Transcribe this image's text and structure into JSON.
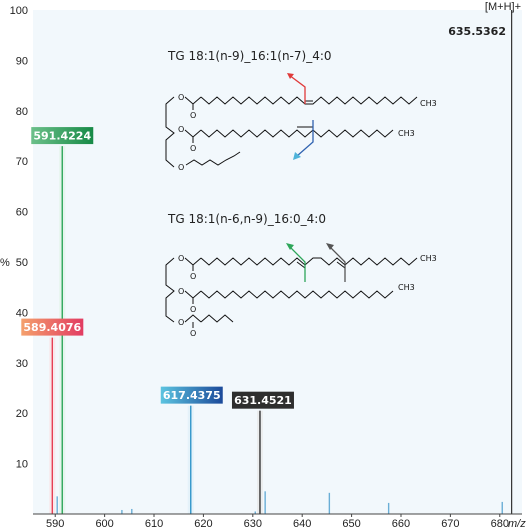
{
  "chart_data": {
    "type": "bar",
    "subtype": "mass-spectrum",
    "xlabel": "m/z",
    "ylabel": "%",
    "xlim": [
      585.5,
      684.5
    ],
    "ylim": [
      0,
      100
    ],
    "xticks": [
      590,
      600,
      610,
      620,
      630,
      640,
      650,
      660,
      670,
      680
    ],
    "yticks": [
      10,
      20,
      30,
      40,
      50,
      60,
      70,
      80,
      90,
      100
    ],
    "grid": false,
    "background": "#f2f8fc",
    "peaks": [
      {
        "mz": 589.4076,
        "intensity": 35,
        "label": "589.4076",
        "color": "#e64055",
        "label_gradient": [
          "#f4a06c",
          "#e23c62"
        ],
        "label_tint": "#fbe3e5"
      },
      {
        "mz": 590.4,
        "intensity": 3.5,
        "color": "#6aaed6"
      },
      {
        "mz": 591.4224,
        "intensity": 73,
        "label": "591.4224",
        "color": "#2ea65a",
        "label_gradient": [
          "#6cc08a",
          "#178a46"
        ],
        "label_tint": "#e1f3e7"
      },
      {
        "mz": 603.5,
        "intensity": 0.8,
        "color": "#6aaed6"
      },
      {
        "mz": 605.5,
        "intensity": 1.0,
        "color": "#6aaed6"
      },
      {
        "mz": 617.4375,
        "intensity": 21.5,
        "label": "617.4375",
        "color": "#2f95c9",
        "label_gradient": [
          "#5cc4e0",
          "#1c4a9a"
        ],
        "label_tint": "#dff0f8"
      },
      {
        "mz": 630.5,
        "intensity": 0.5,
        "color": "#6aaed6"
      },
      {
        "mz": 631.4521,
        "intensity": 20.5,
        "label": "631.4521",
        "color": "#333333",
        "label_gradient": [
          "#2e2e2e",
          "#2e2e2e"
        ],
        "label_tint": "#e8e8e8"
      },
      {
        "mz": 632.5,
        "intensity": 4.5,
        "color": "#6aaed6"
      },
      {
        "mz": 645.5,
        "intensity": 4.2,
        "color": "#6aaed6"
      },
      {
        "mz": 657.5,
        "intensity": 2.2,
        "color": "#6aaed6"
      },
      {
        "mz": 680.5,
        "intensity": 2.4,
        "color": "#6aaed6"
      },
      {
        "mz": 682.4,
        "intensity": 100,
        "color": "#333333"
      }
    ],
    "annotations": [
      {
        "text": "[M+H]+"
      },
      {
        "text": "635.5362"
      }
    ]
  },
  "structures": [
    {
      "name": "TG 18:1(n-9)_16:1(n-7)_4:0",
      "terminal": "CH3",
      "chain2_terminal": "CH3",
      "arrow_colors": [
        "#e03a3a",
        "#2f62b0",
        "#4fb3d9"
      ]
    },
    {
      "name": "TG 18:1(n-6,n-9)_16:0_4:0",
      "terminal": "CH3",
      "chain2_terminal": "CH3",
      "arrow_colors": [
        "#2ea65a",
        "#555555"
      ]
    }
  ],
  "atoms": {
    "oxygen": "O"
  }
}
